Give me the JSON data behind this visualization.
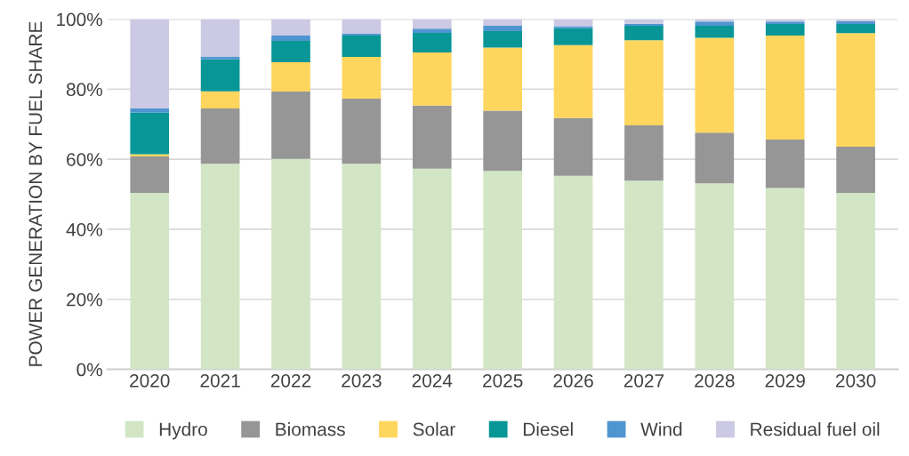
{
  "chart_data": {
    "type": "bar",
    "stacked": true,
    "ylabel": "POWER GENERATION BY FUEL SHARE",
    "categories": [
      "2020",
      "2021",
      "2022",
      "2023",
      "2024",
      "2025",
      "2026",
      "2027",
      "2028",
      "2029",
      "2030"
    ],
    "series": [
      {
        "name": "Hydro",
        "color": "#d2e6c5",
        "values": [
          50.4,
          58.7,
          60.1,
          58.7,
          57.3,
          56.7,
          55.3,
          53.9,
          53.1,
          51.8,
          50.4
        ]
      },
      {
        "name": "Biomass",
        "color": "#969696",
        "values": [
          10.4,
          15.8,
          19.2,
          18.6,
          18.0,
          17.2,
          16.5,
          15.8,
          14.5,
          13.8,
          13.2
        ]
      },
      {
        "name": "Solar",
        "color": "#fed65e",
        "values": [
          0.6,
          4.9,
          8.4,
          11.9,
          15.2,
          18.0,
          20.8,
          24.3,
          27.1,
          29.7,
          32.4
        ]
      },
      {
        "name": "Diesel",
        "color": "#099696",
        "values": [
          11.9,
          9.1,
          6.1,
          6.1,
          5.6,
          4.7,
          4.8,
          4.1,
          3.4,
          3.3,
          2.6
        ]
      },
      {
        "name": "Wind",
        "color": "#4f96d0",
        "values": [
          1.2,
          0.7,
          1.5,
          0.6,
          1.2,
          1.5,
          0.6,
          0.6,
          1.2,
          0.7,
          0.8
        ]
      },
      {
        "name": "Residual fuel oil",
        "color": "#cbc9e3",
        "values": [
          25.5,
          10.8,
          4.7,
          4.1,
          2.7,
          1.9,
          2.0,
          1.3,
          0.7,
          0.7,
          0.6
        ]
      }
    ],
    "ylim": [
      0,
      100
    ],
    "yticks": [
      {
        "value": 0,
        "label": "0%"
      },
      {
        "value": 20,
        "label": "20%"
      },
      {
        "value": 40,
        "label": "40%"
      },
      {
        "value": 60,
        "label": "60%"
      },
      {
        "value": 80,
        "label": "80%"
      },
      {
        "value": 100,
        "label": "100%"
      }
    ],
    "grid": "y",
    "legend": "bottom"
  }
}
